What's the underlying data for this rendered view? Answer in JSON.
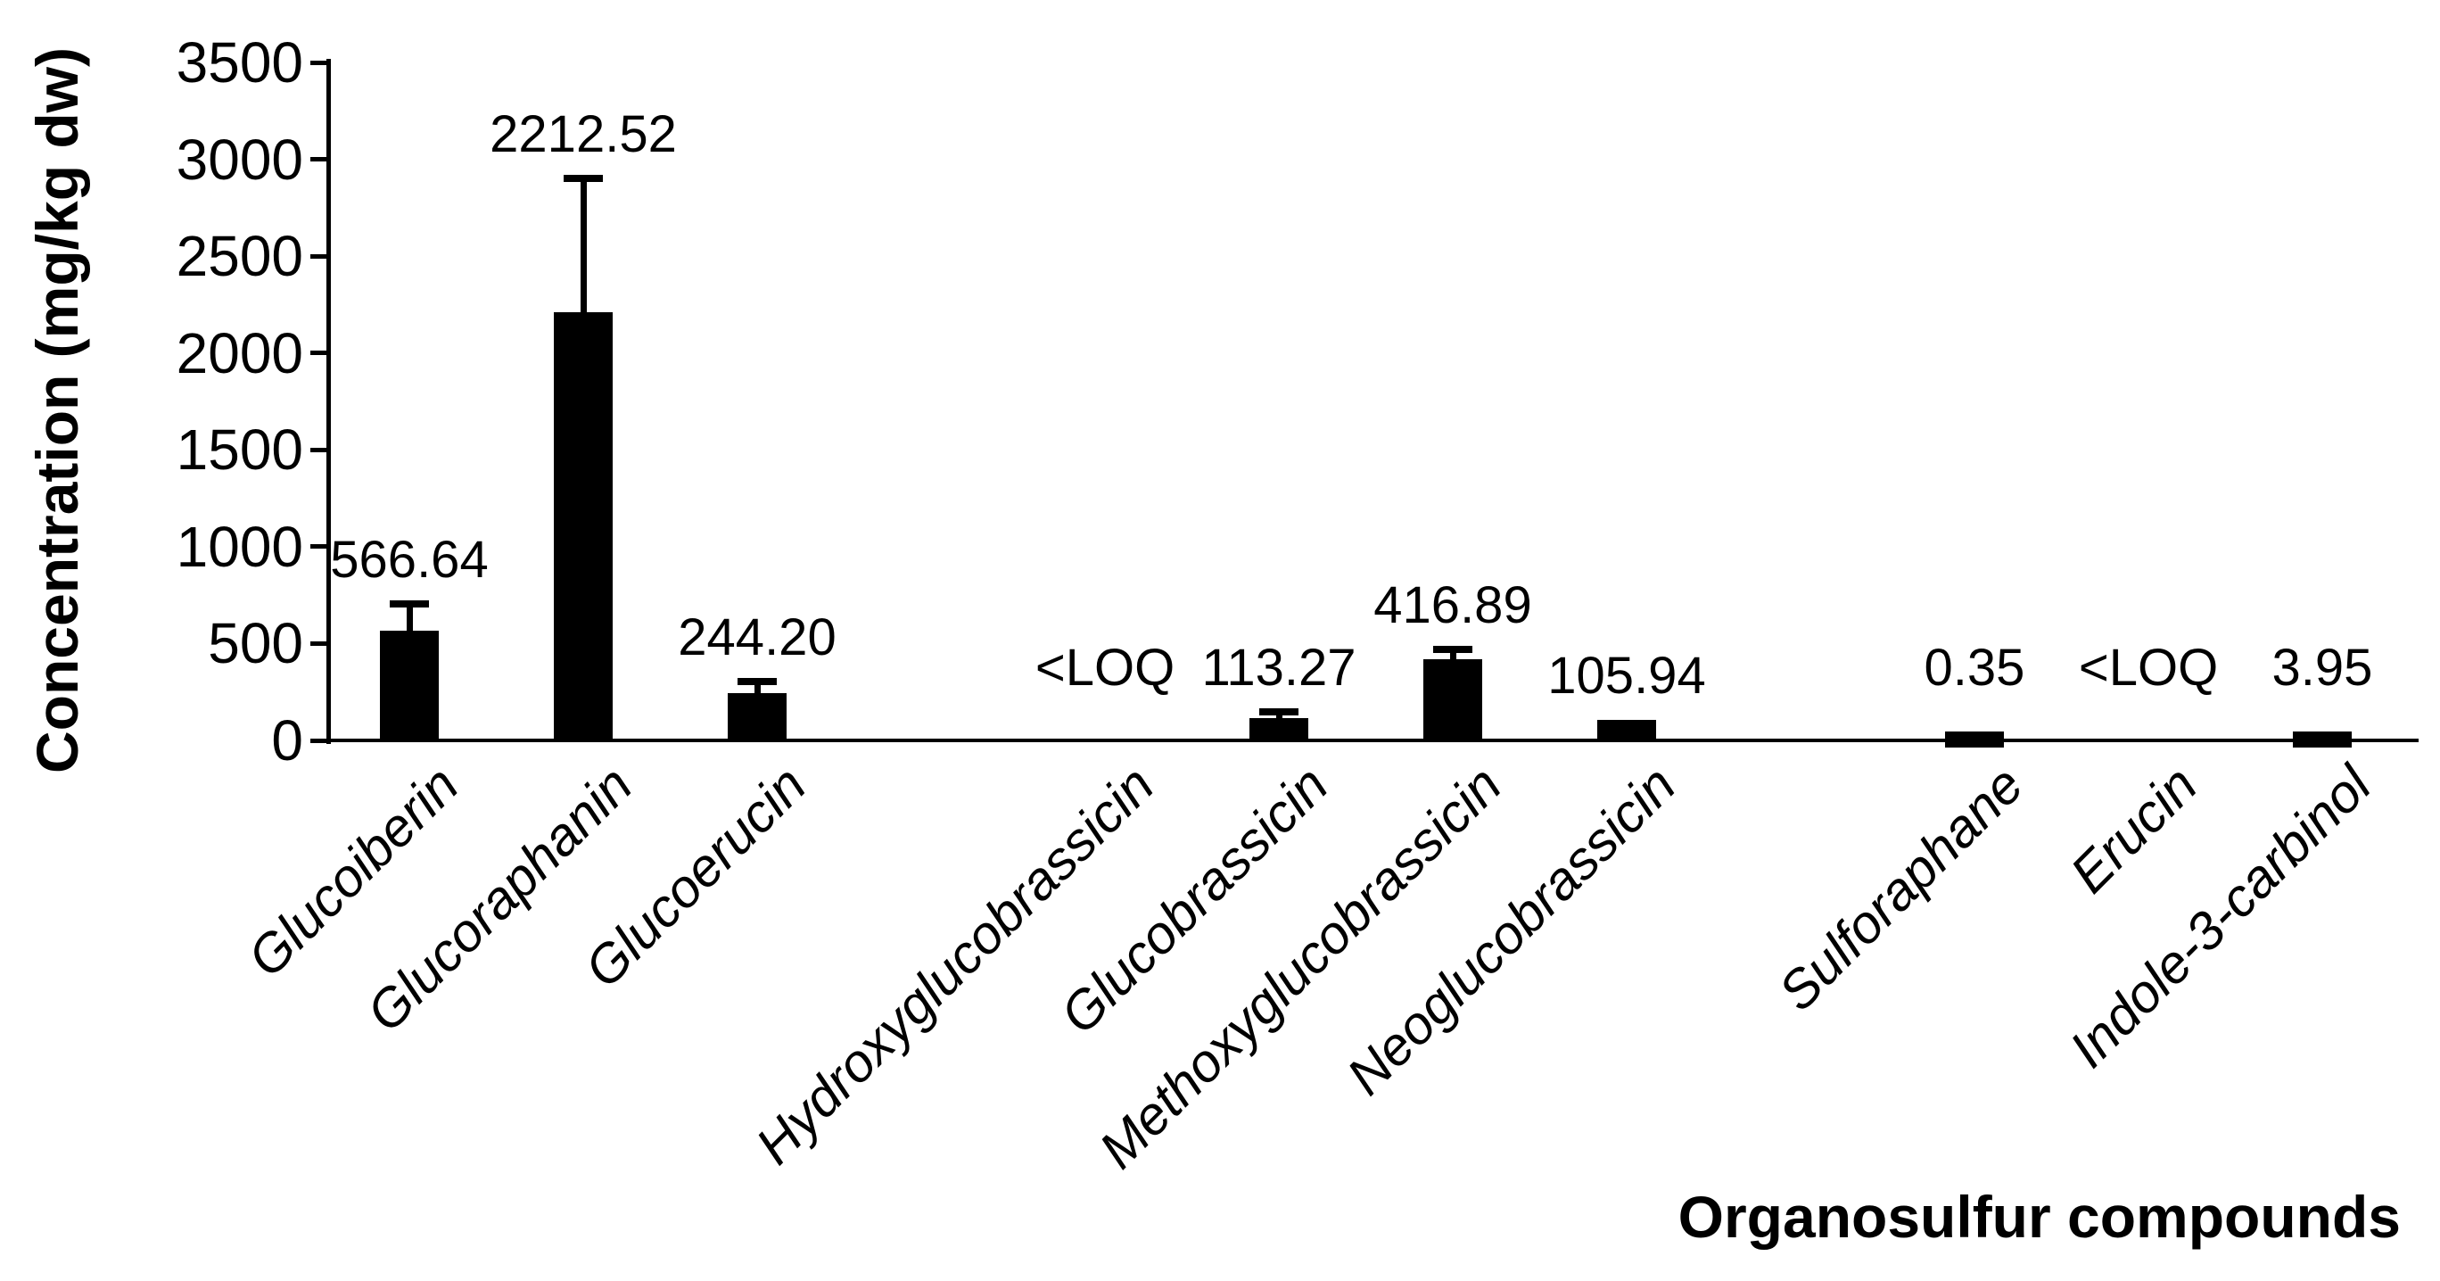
{
  "chart_data": {
    "type": "bar",
    "title": "",
    "ylabel": "Concentration (mg/kg dw)",
    "xlabel": "Organosulfur compounds",
    "ylim": [
      0,
      3500
    ],
    "yticks": [
      0,
      500,
      1000,
      1500,
      2000,
      2500,
      3000,
      3500
    ],
    "grid": false,
    "legend": false,
    "bar_color": "#000000",
    "background_color": "#ffffff",
    "slot_count": 12,
    "bars": [
      {
        "category": "Glucoiberin",
        "value": 566.64,
        "label": "566.64",
        "error_up": 140,
        "slot": 0
      },
      {
        "category": "Glucoraphanin",
        "value": 2212.52,
        "label": "2212.52",
        "error_up": 690,
        "slot": 1
      },
      {
        "category": "Glucoerucin",
        "value": 244.2,
        "label": "244.20",
        "error_up": 60,
        "slot": 2
      },
      {
        "category": "Hydroxyglucobrassicin",
        "value": null,
        "label": "<LOQ",
        "error_up": 0,
        "slot": 4
      },
      {
        "category": "Glucobrassicin",
        "value": 113.27,
        "label": "113.27",
        "error_up": 35,
        "slot": 5
      },
      {
        "category": "Methoxyglucobrassicin",
        "value": 416.89,
        "label": "416.89",
        "error_up": 55,
        "slot": 6
      },
      {
        "category": "Neoglucobrassicin",
        "value": 105.94,
        "label": "105.94",
        "error_up": 0,
        "slot": 7
      },
      {
        "category": "Sulforaphane",
        "value": 0.35,
        "label": "0.35",
        "error_up": 0,
        "slot": 9
      },
      {
        "category": "Erucin",
        "value": null,
        "label": "<LOQ",
        "error_up": 0,
        "slot": 10
      },
      {
        "category": "Indole-3-carbinol",
        "value": 3.95,
        "label": "3.95",
        "error_up": 0,
        "slot": 11
      }
    ]
  }
}
